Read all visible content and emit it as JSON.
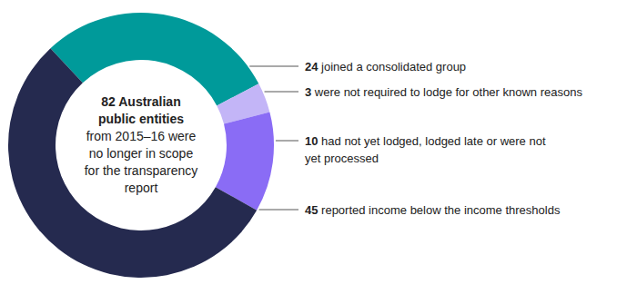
{
  "chart_data": {
    "type": "donut",
    "title": "82 Australian public entities",
    "subtitle": "from 2015–16 were no longer in scope for the transparency report",
    "categories": [
      "joined a consolidated group",
      "were not required to lodge for other known reasons",
      "had not yet lodged, lodged late or were not yet processed",
      "reported income below the income thresholds"
    ],
    "values": [
      24,
      3,
      10,
      45
    ],
    "colors": [
      "#009a9a",
      "#c3b5f7",
      "#8a6cf5",
      "#252a4f"
    ],
    "data_labels": true
  }
}
